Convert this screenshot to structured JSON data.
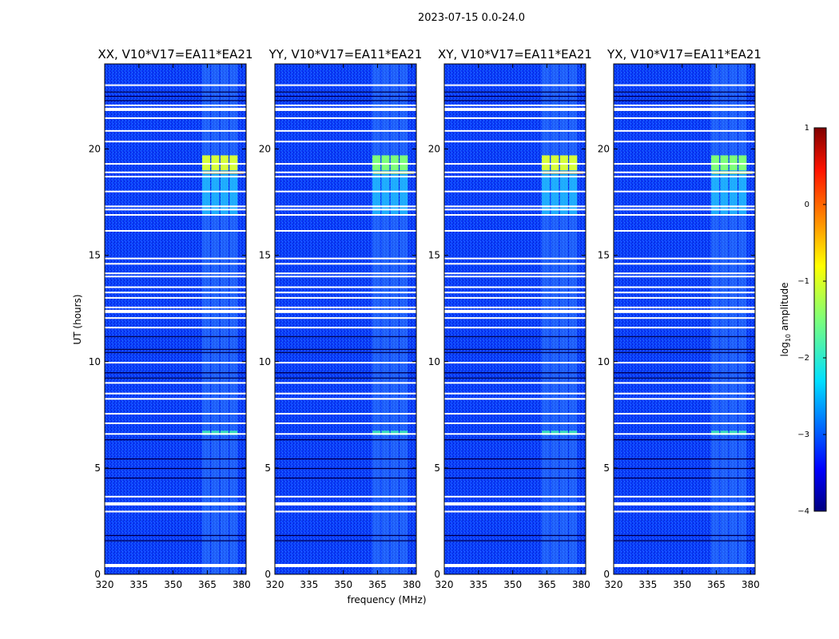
{
  "figure": {
    "suptitle": "2023-07-15 0.0-24.0"
  },
  "chart_data": {
    "type": "heatmap",
    "xlabel": "frequency (MHz)",
    "ylabel": "UT (hours)",
    "xlim": [
      320,
      382
    ],
    "ylim": [
      0,
      24
    ],
    "xticks": [
      "320",
      "335",
      "350",
      "365",
      "380"
    ],
    "yticks": [
      "0",
      "5",
      "10",
      "15",
      "20"
    ],
    "panels": [
      {
        "title": "XX, V10*V17=EA11*EA21"
      },
      {
        "title": "YY, V10*V17=EA11*EA21"
      },
      {
        "title": "XY, V10*V17=EA11*EA21"
      },
      {
        "title": "YX, V10*V17=EA11*EA21"
      }
    ],
    "colorbar": {
      "label": "log10 amplitude",
      "range": [
        -4,
        1
      ],
      "ticks": [
        "1",
        "0",
        "−1",
        "−2",
        "−3",
        "−4"
      ],
      "colormap": "jet"
    }
  }
}
